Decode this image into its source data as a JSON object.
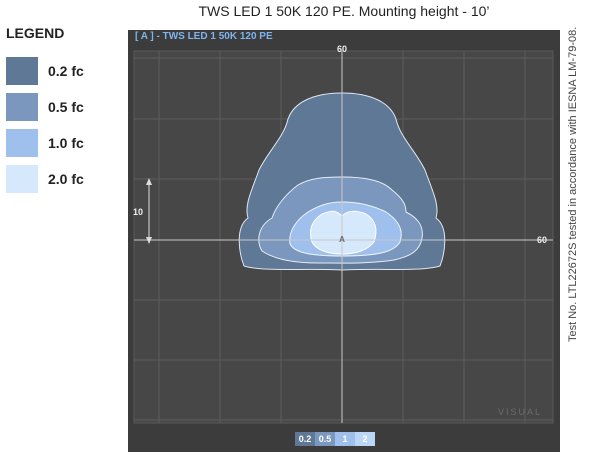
{
  "title": "TWS LED 1 50K 120 PE. Mounting height - 10’",
  "legend": {
    "title": "LEGEND",
    "items": [
      {
        "label": "0.2 fc",
        "color": "#5f7896"
      },
      {
        "label": "0.5 fc",
        "color": "#7b97be"
      },
      {
        "label": "1.0 fc",
        "color": "#9fc0ec"
      },
      {
        "label": "2.0 fc",
        "color": "#d6e8fb"
      }
    ]
  },
  "plot": {
    "header": "[ A ] - TWS LED 1 50K 120 PE",
    "top_label": "60",
    "right_label": "60",
    "scale_label": "10",
    "marker": "A",
    "watermark": "VISUAL",
    "header_color": "#7fb4ea"
  },
  "bottom_legend": [
    "0.2",
    "0.5",
    "1",
    "2"
  ],
  "note": "Test No. LTL22672S tested in accordance with IESNA LM-79-08."
}
